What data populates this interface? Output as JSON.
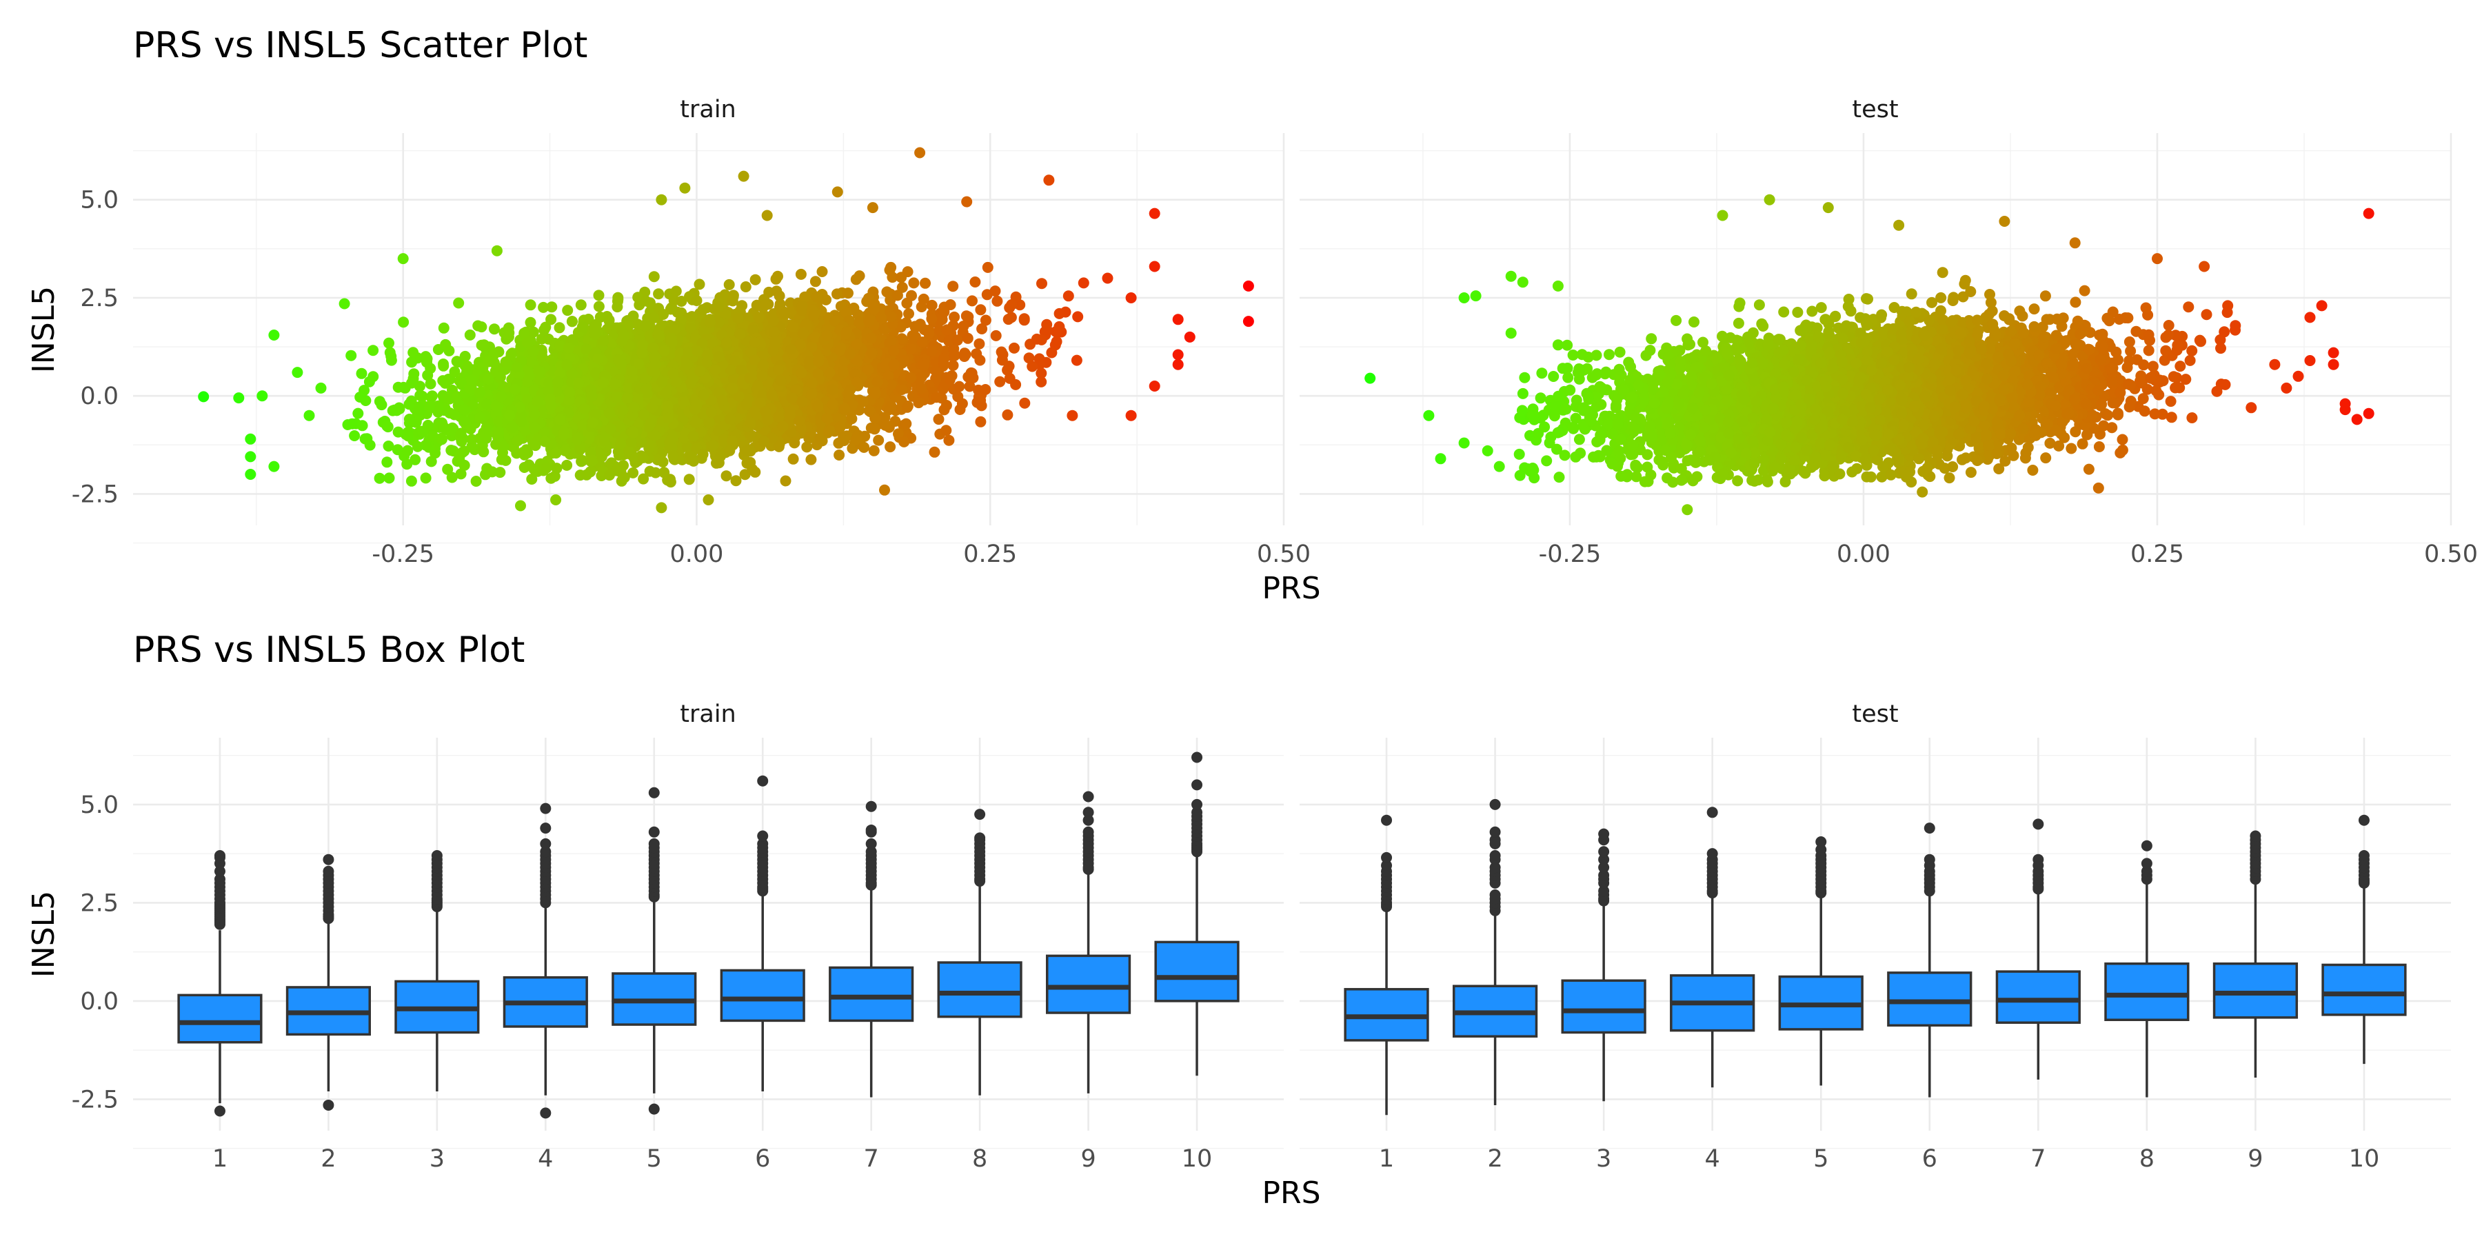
{
  "chart_data": [
    {
      "type": "scatter",
      "title": "PRS vs INSL5 Scatter Plot",
      "xlabel": "PRS",
      "ylabel": "INSL5",
      "facets": [
        "train",
        "test"
      ],
      "xlim": [
        -0.48,
        0.5
      ],
      "ylim": [
        -3.3,
        6.7
      ],
      "x_ticks": [
        "-0.25",
        "0.00",
        "0.25",
        "0.50"
      ],
      "x_tick_values": [
        -0.25,
        0,
        0.25,
        0.5
      ],
      "y_ticks": [
        "-2.5",
        "0.0",
        "2.5",
        "5.0"
      ],
      "y_tick_values": [
        -2.5,
        0,
        2.5,
        5
      ],
      "grid": true,
      "color_scale": {
        "low": "#00ff00",
        "high": "#ff0000",
        "mapped_to": "PRS"
      },
      "cloud": {
        "train": {
          "x_sd": 0.1,
          "intercept": 0.35,
          "slope": 3.2,
          "noise_sd": 0.85
        },
        "test": {
          "x_sd": 0.1,
          "intercept": 0.0,
          "slope": 2.4,
          "noise_sd": 0.8
        }
      },
      "outliers": {
        "train": [
          [
            -0.42,
            -0.02
          ],
          [
            -0.39,
            -0.05
          ],
          [
            -0.37,
            0.0
          ],
          [
            -0.36,
            1.55
          ],
          [
            -0.38,
            -1.1
          ],
          [
            -0.38,
            -1.55
          ],
          [
            -0.38,
            -2.0
          ],
          [
            -0.36,
            -1.8
          ],
          [
            -0.33,
            -0.5
          ],
          [
            -0.32,
            0.2
          ],
          [
            -0.34,
            0.6
          ],
          [
            -0.3,
            2.35
          ],
          [
            -0.25,
            3.5
          ],
          [
            -0.27,
            -2.1
          ],
          [
            -0.17,
            3.7
          ],
          [
            -0.15,
            -2.8
          ],
          [
            -0.12,
            -2.65
          ],
          [
            -0.03,
            5.0
          ],
          [
            -0.01,
            5.3
          ],
          [
            -0.03,
            -2.85
          ],
          [
            0.01,
            -2.65
          ],
          [
            0.04,
            5.6
          ],
          [
            0.06,
            4.6
          ],
          [
            0.12,
            5.2
          ],
          [
            0.15,
            4.8
          ],
          [
            0.16,
            -2.4
          ],
          [
            0.19,
            6.2
          ],
          [
            0.23,
            4.95
          ],
          [
            0.3,
            5.5
          ],
          [
            0.39,
            4.65
          ],
          [
            0.39,
            3.3
          ],
          [
            0.41,
            1.95
          ],
          [
            0.42,
            1.5
          ],
          [
            0.41,
            1.05
          ],
          [
            0.41,
            0.8
          ],
          [
            0.39,
            0.25
          ],
          [
            0.37,
            -0.5
          ],
          [
            0.47,
            2.8
          ],
          [
            0.47,
            1.9
          ],
          [
            0.32,
            -0.5
          ],
          [
            0.35,
            3.0
          ],
          [
            0.37,
            2.5
          ]
        ],
        "test": [
          [
            -0.42,
            0.45
          ],
          [
            -0.37,
            -0.5
          ],
          [
            -0.36,
            -1.6
          ],
          [
            -0.34,
            -1.2
          ],
          [
            -0.34,
            2.5
          ],
          [
            -0.33,
            2.55
          ],
          [
            -0.3,
            3.05
          ],
          [
            -0.29,
            2.9
          ],
          [
            -0.26,
            2.8
          ],
          [
            -0.3,
            1.6
          ],
          [
            -0.32,
            -1.4
          ],
          [
            -0.31,
            -1.8
          ],
          [
            -0.26,
            1.3
          ],
          [
            -0.15,
            -2.9
          ],
          [
            -0.12,
            4.6
          ],
          [
            -0.08,
            5.0
          ],
          [
            -0.03,
            4.8
          ],
          [
            0.03,
            4.35
          ],
          [
            0.05,
            -2.45
          ],
          [
            0.12,
            4.45
          ],
          [
            0.18,
            3.9
          ],
          [
            0.2,
            -2.35
          ],
          [
            0.25,
            3.5
          ],
          [
            0.29,
            3.3
          ],
          [
            0.31,
            2.3
          ],
          [
            0.35,
            0.8
          ],
          [
            0.36,
            0.2
          ],
          [
            0.38,
            2.0
          ],
          [
            0.39,
            2.3
          ],
          [
            0.38,
            0.9
          ],
          [
            0.4,
            1.1
          ],
          [
            0.4,
            0.8
          ],
          [
            0.41,
            -0.2
          ],
          [
            0.42,
            -0.6
          ],
          [
            0.41,
            -0.35
          ],
          [
            0.43,
            4.65
          ],
          [
            0.43,
            -0.45
          ],
          [
            0.33,
            -0.3
          ],
          [
            0.37,
            0.5
          ]
        ]
      }
    },
    {
      "type": "box",
      "title": "PRS vs INSL5 Box Plot",
      "xlabel": "PRS",
      "ylabel": "INSL5",
      "facets": [
        "train",
        "test"
      ],
      "categories": [
        "1",
        "2",
        "3",
        "4",
        "5",
        "6",
        "7",
        "8",
        "9",
        "10"
      ],
      "ylim": [
        -3.3,
        6.7
      ],
      "y_ticks": [
        "-2.5",
        "0.0",
        "2.5",
        "5.0"
      ],
      "y_tick_values": [
        -2.5,
        0,
        2.5,
        5
      ],
      "box_color": "#1e90ff",
      "grid": true,
      "train": [
        {
          "q1": -1.05,
          "median": -0.55,
          "q3": 0.15,
          "lo": -2.6,
          "hi": 1.8,
          "outliers": [
            -2.8,
            1.95,
            2.0,
            2.05,
            2.1,
            2.15,
            2.2,
            2.25,
            2.3,
            2.35,
            2.4,
            2.45,
            2.5,
            2.6,
            2.7,
            2.8,
            2.9,
            3.0,
            3.1,
            3.3,
            3.5,
            3.65,
            3.7
          ]
        },
        {
          "q1": -0.85,
          "median": -0.3,
          "q3": 0.35,
          "lo": -2.3,
          "hi": 2.05,
          "outliers": [
            -2.65,
            2.1,
            2.15,
            2.2,
            2.3,
            2.4,
            2.5,
            2.6,
            2.7,
            2.8,
            2.9,
            3.0,
            3.1,
            3.2,
            3.3,
            3.6
          ]
        },
        {
          "q1": -0.8,
          "median": -0.2,
          "q3": 0.5,
          "lo": -2.3,
          "hi": 2.35,
          "outliers": [
            2.4,
            2.45,
            2.5,
            2.55,
            2.6,
            2.7,
            2.8,
            2.9,
            3.0,
            3.1,
            3.2,
            3.3,
            3.4,
            3.5,
            3.6,
            3.7
          ]
        },
        {
          "q1": -0.65,
          "median": -0.05,
          "q3": 0.6,
          "lo": -2.4,
          "hi": 2.45,
          "outliers": [
            -2.85,
            2.5,
            2.6,
            2.7,
            2.8,
            2.9,
            3.0,
            3.1,
            3.2,
            3.3,
            3.4,
            3.5,
            3.6,
            3.7,
            3.8,
            4.0,
            4.4,
            4.9
          ]
        },
        {
          "q1": -0.6,
          "median": 0.0,
          "q3": 0.7,
          "lo": -2.35,
          "hi": 2.6,
          "outliers": [
            -2.75,
            2.65,
            2.7,
            2.8,
            2.9,
            3.0,
            3.1,
            3.2,
            3.3,
            3.4,
            3.5,
            3.6,
            3.7,
            3.8,
            3.9,
            4.0,
            4.3,
            5.3
          ]
        },
        {
          "q1": -0.5,
          "median": 0.05,
          "q3": 0.78,
          "lo": -2.3,
          "hi": 2.75,
          "outliers": [
            2.8,
            2.85,
            2.9,
            3.0,
            3.1,
            3.2,
            3.3,
            3.4,
            3.5,
            3.6,
            3.7,
            3.8,
            3.9,
            4.0,
            4.2,
            5.6
          ]
        },
        {
          "q1": -0.5,
          "median": 0.1,
          "q3": 0.85,
          "lo": -2.45,
          "hi": 2.9,
          "outliers": [
            2.95,
            3.0,
            3.1,
            3.2,
            3.3,
            3.4,
            3.5,
            3.6,
            3.7,
            3.8,
            4.0,
            4.3,
            4.35,
            4.95
          ]
        },
        {
          "q1": -0.4,
          "median": 0.2,
          "q3": 0.98,
          "lo": -2.4,
          "hi": 3.0,
          "outliers": [
            3.05,
            3.1,
            3.2,
            3.3,
            3.4,
            3.5,
            3.6,
            3.7,
            3.8,
            3.9,
            4.0,
            4.1,
            4.15,
            4.75
          ]
        },
        {
          "q1": -0.3,
          "median": 0.35,
          "q3": 1.15,
          "lo": -2.35,
          "hi": 3.3,
          "outliers": [
            3.35,
            3.4,
            3.5,
            3.6,
            3.7,
            3.8,
            3.9,
            4.0,
            4.1,
            4.2,
            4.3,
            4.6,
            4.8,
            5.2
          ]
        },
        {
          "q1": 0.0,
          "median": 0.6,
          "q3": 1.5,
          "lo": -1.9,
          "hi": 3.75,
          "outliers": [
            3.8,
            3.85,
            3.9,
            3.95,
            4.0,
            4.1,
            4.2,
            4.3,
            4.4,
            4.5,
            4.6,
            4.7,
            4.8,
            5.0,
            5.5,
            6.2
          ]
        }
      ],
      "test": [
        {
          "q1": -1.0,
          "median": -0.4,
          "q3": 0.3,
          "lo": -2.9,
          "hi": 2.3,
          "outliers": [
            2.4,
            2.45,
            2.5,
            2.6,
            2.7,
            2.8,
            2.9,
            3.0,
            3.1,
            3.2,
            3.3,
            3.45,
            3.65,
            4.6
          ]
        },
        {
          "q1": -0.9,
          "median": -0.3,
          "q3": 0.38,
          "lo": -2.65,
          "hi": 2.2,
          "outliers": [
            2.3,
            2.4,
            2.5,
            2.6,
            2.7,
            3.0,
            3.1,
            3.2,
            3.3,
            3.4,
            3.6,
            3.7,
            4.0,
            4.1,
            4.3,
            5.0
          ]
        },
        {
          "q1": -0.8,
          "median": -0.25,
          "q3": 0.52,
          "lo": -2.55,
          "hi": 2.5,
          "outliers": [
            2.55,
            2.6,
            2.7,
            2.8,
            3.0,
            3.1,
            3.2,
            3.4,
            3.6,
            3.8,
            4.1,
            4.25
          ]
        },
        {
          "q1": -0.75,
          "median": -0.05,
          "q3": 0.65,
          "lo": -2.2,
          "hi": 2.7,
          "outliers": [
            2.75,
            2.8,
            2.9,
            3.0,
            3.1,
            3.2,
            3.3,
            3.4,
            3.5,
            3.6,
            3.75,
            4.8
          ]
        },
        {
          "q1": -0.72,
          "median": -0.1,
          "q3": 0.62,
          "lo": -2.15,
          "hi": 2.7,
          "outliers": [
            2.75,
            2.8,
            2.9,
            3.0,
            3.1,
            3.2,
            3.3,
            3.4,
            3.5,
            3.6,
            3.7,
            3.85,
            4.05
          ]
        },
        {
          "q1": -0.62,
          "median": -0.02,
          "q3": 0.72,
          "lo": -2.45,
          "hi": 2.75,
          "outliers": [
            2.8,
            2.9,
            3.0,
            3.1,
            3.2,
            3.3,
            3.45,
            3.6,
            4.4
          ]
        },
        {
          "q1": -0.55,
          "median": 0.02,
          "q3": 0.75,
          "lo": -2.0,
          "hi": 2.8,
          "outliers": [
            2.85,
            2.9,
            3.0,
            3.1,
            3.2,
            3.3,
            3.45,
            3.6,
            4.5
          ]
        },
        {
          "q1": -0.48,
          "median": 0.15,
          "q3": 0.95,
          "lo": -2.45,
          "hi": 3.05,
          "outliers": [
            3.1,
            3.2,
            3.3,
            3.5,
            3.95
          ]
        },
        {
          "q1": -0.42,
          "median": 0.2,
          "q3": 0.95,
          "lo": -1.95,
          "hi": 3.05,
          "outliers": [
            3.1,
            3.2,
            3.3,
            3.4,
            3.5,
            3.6,
            3.7,
            3.8,
            3.9,
            4.0,
            4.1,
            4.2
          ]
        },
        {
          "q1": -0.35,
          "median": 0.18,
          "q3": 0.92,
          "lo": -1.6,
          "hi": 2.95,
          "outliers": [
            3.0,
            3.05,
            3.1,
            3.2,
            3.3,
            3.4,
            3.5,
            3.6,
            3.7,
            4.6
          ]
        }
      ]
    }
  ]
}
